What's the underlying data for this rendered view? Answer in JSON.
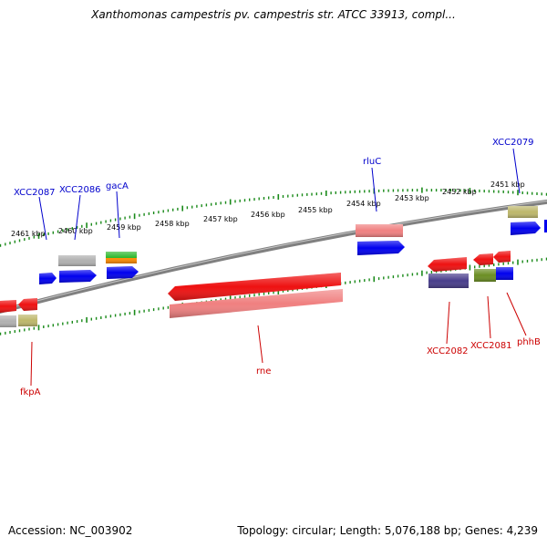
{
  "header": {
    "title": "Xanthomonas campestris pv. campestris str. ATCC 33913, compl..."
  },
  "footer": {
    "accession": "Accession: NC_003902",
    "summary": "Topology: circular; Length: 5,076,188 bp; Genes: 4,239"
  },
  "colors": {
    "backbone": "#808080",
    "tick": "#1a8a1a",
    "plus_label": "#0000cc",
    "minus_label": "#cc0000",
    "red": "#ee1111",
    "blue": "#0000ee",
    "pink": "#f08080",
    "gray": "#b0b0b0",
    "khaki": "#bdb76b",
    "green": "#2db82d",
    "orange": "#ff8c00",
    "purple": "#483d8b",
    "olive": "#6b8e23"
  },
  "scale": {
    "tick_labels": [
      "2461 kbp",
      "2460 kbp",
      "2459 kbp",
      "2458 kbp",
      "2457 kbp",
      "2456 kbp",
      "2455 kbp",
      "2454 kbp",
      "2453 kbp",
      "2452 kbp",
      "2451 kbp"
    ]
  },
  "labels": {
    "XCC2087": "XCC2087",
    "XCC2086": "XCC2086",
    "gacA": "gacA",
    "rluC": "rluC",
    "XCC2079": "XCC2079",
    "fkpA": "fkpA",
    "rne": "rne",
    "XCC2082": "XCC2082",
    "XCC2081": "XCC2081",
    "phhB": "phhB"
  }
}
